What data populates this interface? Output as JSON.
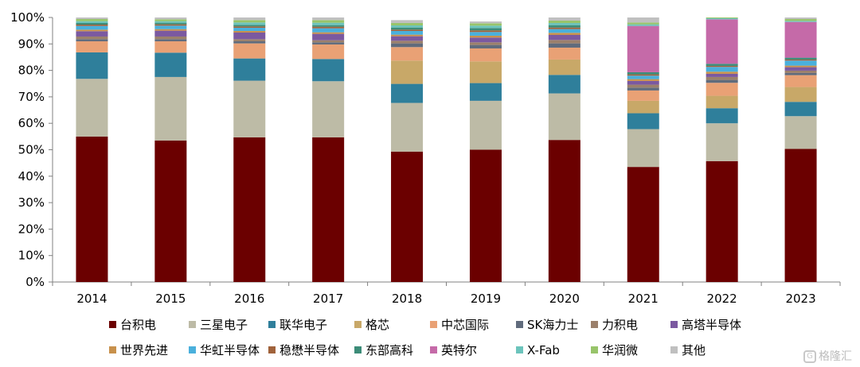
{
  "chart_data": {
    "type": "bar",
    "stacked": true,
    "title": "",
    "xlabel": "",
    "ylabel": "",
    "ylim": [
      0,
      100
    ],
    "yticks": [
      "0%",
      "10%",
      "20%",
      "30%",
      "40%",
      "50%",
      "60%",
      "70%",
      "80%",
      "90%",
      "100%"
    ],
    "categories": [
      "2014",
      "2015",
      "2016",
      "2017",
      "2018",
      "2019",
      "2020",
      "2021",
      "2022",
      "2023"
    ],
    "legend_position": "bottom",
    "series": [
      {
        "name": "台积电",
        "color": "#6b0000",
        "values": [
          55.0,
          53.5,
          54.7,
          54.7,
          49.3,
          50.0,
          53.7,
          43.5,
          45.7,
          50.3
        ]
      },
      {
        "name": "三星电子",
        "color": "#bdbba6",
        "values": [
          21.8,
          24.0,
          21.4,
          21.2,
          18.4,
          18.5,
          17.6,
          14.3,
          14.3,
          12.4
        ]
      },
      {
        "name": "联华电子",
        "color": "#2f7f9b",
        "values": [
          10.0,
          9.2,
          8.4,
          8.4,
          7.2,
          6.7,
          7.0,
          6.0,
          5.7,
          5.4
        ]
      },
      {
        "name": "格芯",
        "color": "#c8a868",
        "values": [
          0.0,
          0.0,
          0.0,
          0.0,
          8.8,
          8.2,
          5.8,
          4.7,
          4.7,
          5.6
        ]
      },
      {
        "name": "中芯国际",
        "color": "#e9a175",
        "values": [
          4.2,
          4.3,
          5.7,
          5.5,
          5.1,
          4.9,
          4.5,
          3.9,
          4.9,
          4.5
        ]
      },
      {
        "name": "SK海力士",
        "color": "#606b7c",
        "values": [
          0.8,
          0.8,
          0.8,
          0.8,
          1.4,
          1.3,
          1.6,
          1.1,
          1.1,
          0.8
        ]
      },
      {
        "name": "力积电",
        "color": "#9b806b",
        "values": [
          1.0,
          1.0,
          0.8,
          0.8,
          1.0,
          1.0,
          1.3,
          1.1,
          1.1,
          0.9
        ]
      },
      {
        "name": "高塔半导体",
        "color": "#7b59a0",
        "values": [
          2.0,
          2.2,
          2.5,
          2.4,
          1.7,
          1.8,
          1.9,
          1.4,
          1.2,
          1.3
        ]
      },
      {
        "name": "世界先进",
        "color": "#c8914c",
        "values": [
          0.6,
          0.6,
          0.6,
          0.6,
          0.6,
          0.7,
          0.8,
          0.7,
          0.8,
          0.6
        ]
      },
      {
        "name": "华虹半导体",
        "color": "#4ab0dc",
        "values": [
          1.4,
          1.3,
          1.2,
          1.5,
          1.4,
          1.4,
          1.4,
          1.3,
          1.8,
          1.9
        ]
      },
      {
        "name": "稳懋半导体",
        "color": "#a0623b",
        "values": [
          0.5,
          0.5,
          0.5,
          0.6,
          0.5,
          0.6,
          0.6,
          0.5,
          0.4,
          0.4
        ]
      },
      {
        "name": "东部高科",
        "color": "#3c8c78",
        "values": [
          0.6,
          0.6,
          0.6,
          0.6,
          0.8,
          0.9,
          0.9,
          0.8,
          0.8,
          0.7
        ]
      },
      {
        "name": "英特尔",
        "color": "#c56aa8",
        "values": [
          0.0,
          0.0,
          0.0,
          0.0,
          0.0,
          0.0,
          0.0,
          17.5,
          16.8,
          13.5
        ]
      },
      {
        "name": "X-Fab",
        "color": "#6cc4bc",
        "values": [
          0.7,
          0.6,
          0.9,
          0.9,
          0.8,
          0.9,
          0.8,
          0.6,
          0.4,
          0.4
        ]
      },
      {
        "name": "华润微",
        "color": "#98c46a",
        "values": [
          0.8,
          0.7,
          0.9,
          1.0,
          0.9,
          0.9,
          0.9,
          0.7,
          0.6,
          0.7
        ]
      },
      {
        "name": "其他",
        "color": "#c0c0c0",
        "values": [
          0.6,
          0.7,
          1.0,
          1.0,
          1.1,
          0.7,
          1.2,
          1.9,
          0.5,
          0.6
        ]
      }
    ]
  },
  "watermark": "格隆汇"
}
